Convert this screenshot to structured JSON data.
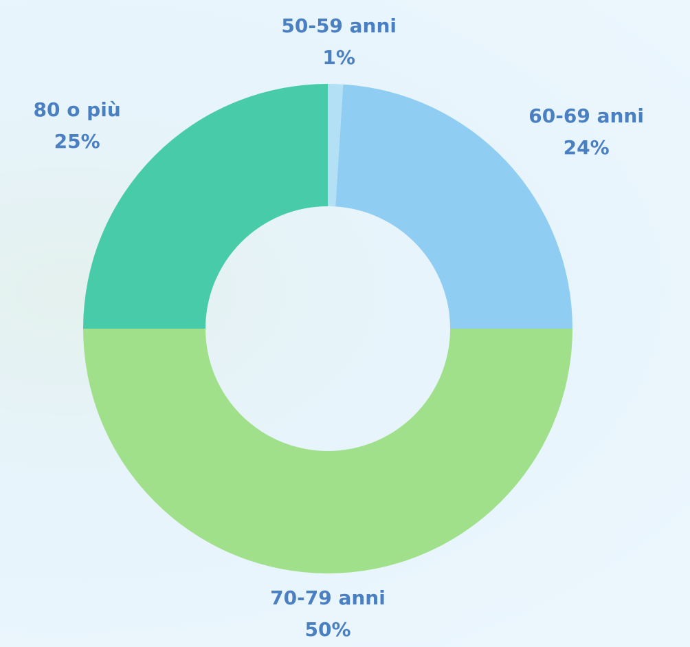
{
  "chart_data": {
    "type": "doughnut",
    "categories": [
      "50-59 anni",
      "60-69 anni",
      "70-79 anni",
      "80 o più"
    ],
    "values": [
      1,
      24,
      50,
      25
    ],
    "value_labels": [
      "1%",
      "24%",
      "50%",
      "25%"
    ],
    "colors": [
      "#b3e0f5",
      "#90cdf2",
      "#a0e08a",
      "#48cba8"
    ]
  }
}
